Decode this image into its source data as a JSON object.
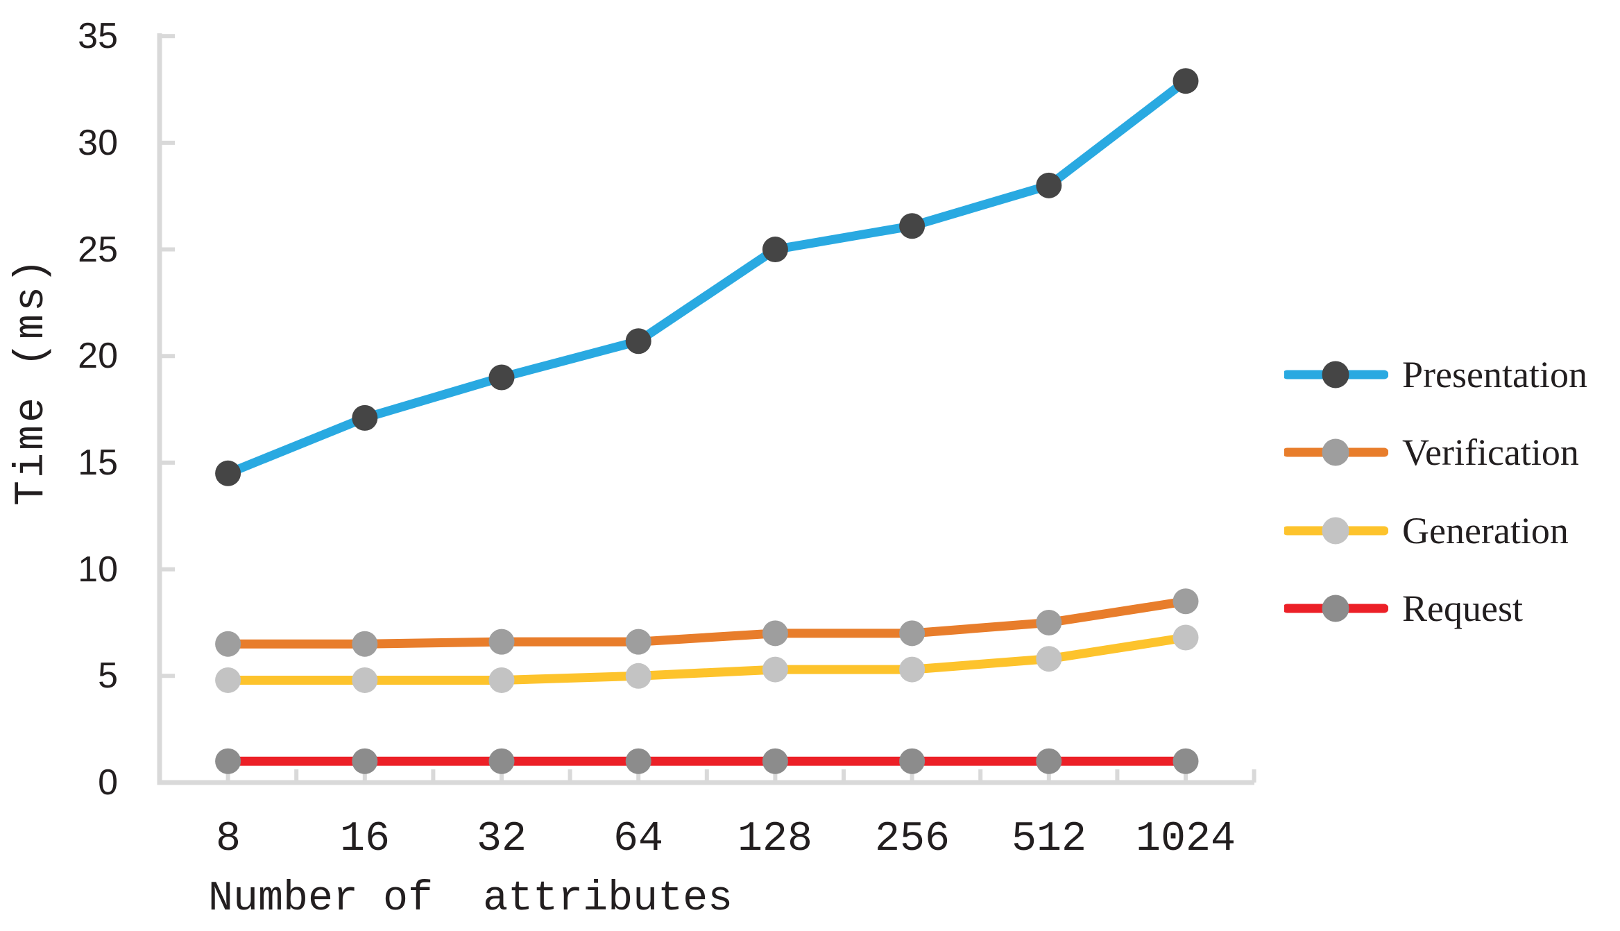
{
  "chart_data": {
    "type": "line",
    "categories": [
      "8",
      "16",
      "32",
      "64",
      "128",
      "256",
      "512",
      "1024"
    ],
    "x_axis_label": "Number of  attributes",
    "y_axis_label": "Time (ms)",
    "y_ticks": [
      0,
      5,
      10,
      15,
      20,
      25,
      30,
      35
    ],
    "y_tick_labels_top_to_bottom": [
      "35",
      "30",
      "25",
      "20",
      "15",
      "10",
      "5",
      "0"
    ],
    "ylim": [
      0,
      35
    ],
    "grid": false,
    "legend_position": "right",
    "axis_color": "#D9D9D9",
    "text_color": "#221E1F",
    "series": [
      {
        "name": "Presentation",
        "values": [
          14.5,
          17.1,
          19.0,
          20.7,
          25.0,
          26.1,
          28.0,
          32.9
        ],
        "line_color": "#29A9E1",
        "marker_color": "#454545"
      },
      {
        "name": "Verification",
        "values": [
          6.5,
          6.5,
          6.6,
          6.6,
          7.0,
          7.0,
          7.5,
          8.5
        ],
        "line_color": "#E87D2B",
        "marker_color": "#9E9E9E"
      },
      {
        "name": "Generation",
        "values": [
          4.8,
          4.8,
          4.8,
          5.0,
          5.3,
          5.3,
          5.8,
          6.8
        ],
        "line_color": "#FDC32C",
        "marker_color": "#C3C3C3"
      },
      {
        "name": "Request",
        "values": [
          1.0,
          1.0,
          1.0,
          1.0,
          1.0,
          1.0,
          1.0,
          1.0
        ],
        "line_color": "#EC2027",
        "marker_color": "#8C8C8C"
      }
    ]
  }
}
